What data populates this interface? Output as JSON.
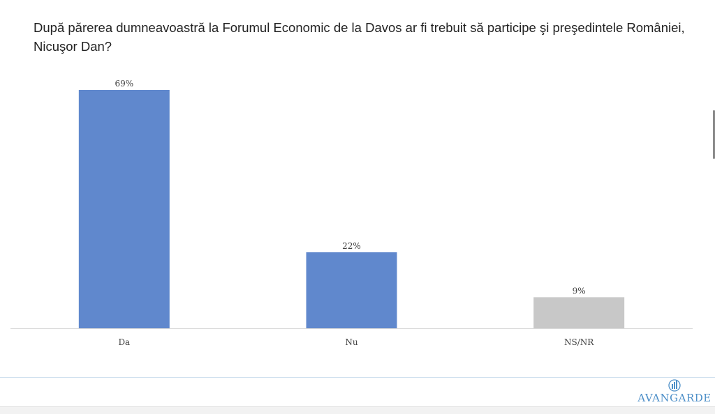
{
  "question": "După părerea dumneavoastră la Forumul Economic de la Davos ar fi trebuit să participe şi preşedintele României, Nicuşor Dan?",
  "chart_data": {
    "type": "bar",
    "categories": [
      "Da",
      "Nu",
      "NS/NR"
    ],
    "values": [
      69,
      22,
      9
    ],
    "data_labels": [
      "69%",
      "22%",
      "9%"
    ],
    "colors": [
      "#6088cd",
      "#6088cd",
      "#c8c8c8"
    ],
    "unit": "%",
    "ylim": [
      0,
      69
    ],
    "grid": false,
    "legend": "none"
  },
  "logo": {
    "name": "AVANGARDE",
    "color": "#4d8fc8",
    "icon": "avangarde-logo-icon"
  }
}
